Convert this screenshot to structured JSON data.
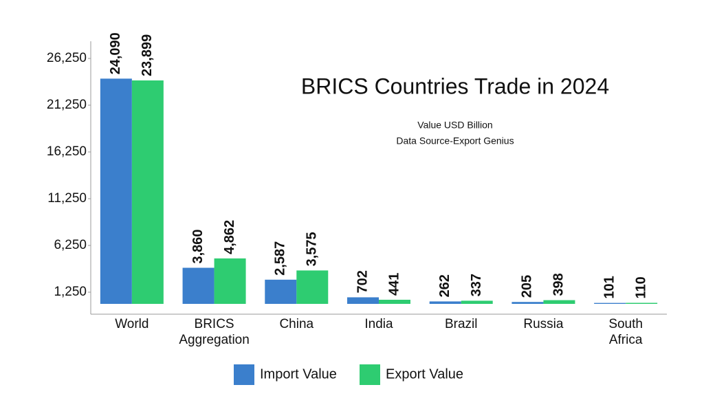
{
  "chart_data": {
    "type": "bar",
    "title": "BRICS Countries Trade in 2024",
    "subtitle": [
      "Value USD Billion",
      "Data Source-Export Genius"
    ],
    "categories": [
      "World",
      "BRICS Aggregation",
      "China",
      "India",
      "Brazil",
      "Russia",
      "South Africa"
    ],
    "series": [
      {
        "name": "Import Value",
        "color": "#3b7fcc",
        "values": [
          24090,
          3860,
          2587,
          702,
          262,
          205,
          101
        ],
        "value_labels": [
          "24,090",
          "3,860",
          "2,587",
          "702",
          "262",
          "205",
          "101"
        ]
      },
      {
        "name": "Export Value",
        "color": "#2ecc71",
        "values": [
          23899,
          4862,
          3575,
          441,
          337,
          398,
          110
        ],
        "value_labels": [
          "23,899",
          "4,862",
          "3,575",
          "441",
          "337",
          "398",
          "110"
        ]
      }
    ],
    "ylim": [
      -1103,
      28088
    ],
    "yticks": [
      {
        "value": 1250,
        "label": "1,250"
      },
      {
        "value": 6250,
        "label": "6,250"
      },
      {
        "value": 11250,
        "label": "11,250"
      },
      {
        "value": 16250,
        "label": "16,250"
      },
      {
        "value": 21250,
        "label": "21,250"
      },
      {
        "value": 26250,
        "label": "26,250"
      }
    ],
    "legend": "bottom"
  }
}
